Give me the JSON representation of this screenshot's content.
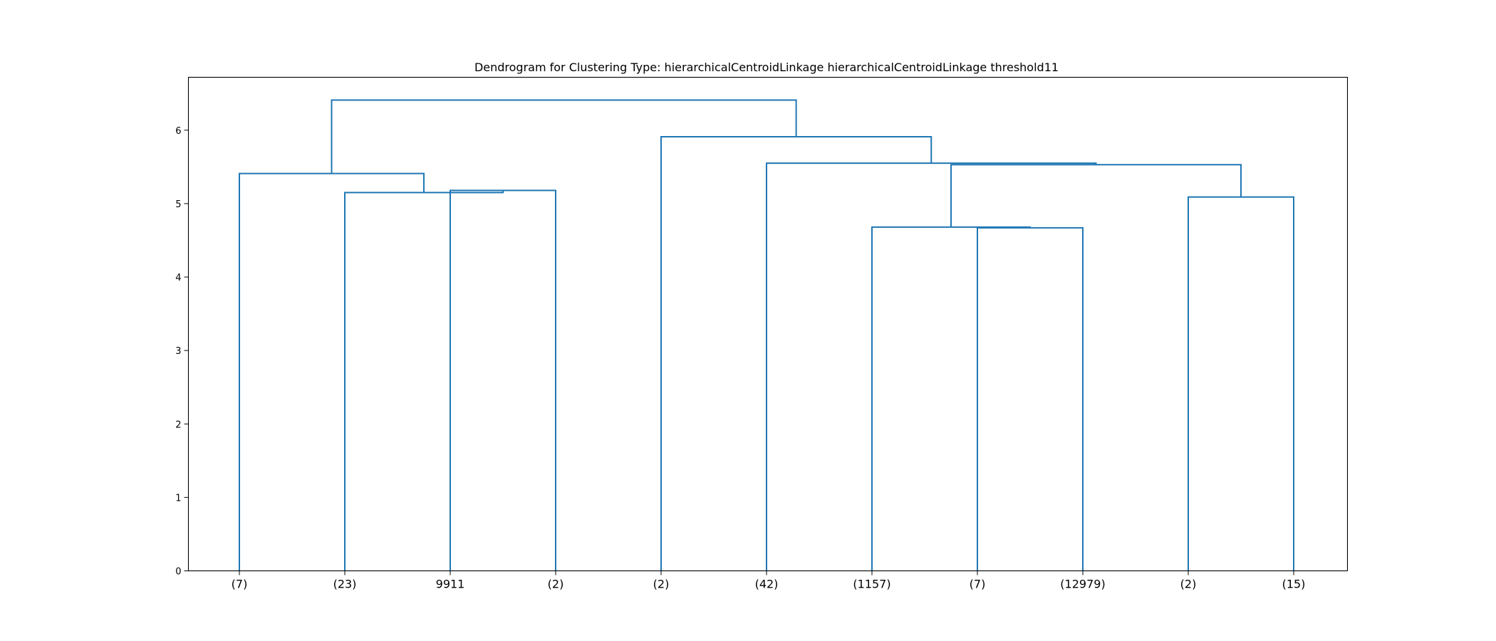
{
  "chart_data": {
    "type": "dendrogram",
    "title": "Dendrogram for Clustering Type: hierarchicalCentroidLinkage hierarchicalCentroidLinkage threshold11",
    "xlabel": "",
    "ylabel": "",
    "ylim": [
      0,
      6.72
    ],
    "yticks": [
      0,
      1,
      2,
      3,
      4,
      5,
      6
    ],
    "grid": false,
    "leaf_labels": [
      "(7)",
      "(23)",
      "9911",
      "(2)",
      "(2)",
      "(42)",
      "(1157)",
      "(7)",
      "(12979)",
      "(2)",
      "(15)"
    ],
    "link_color": "#1f77b4",
    "merges": [
      {
        "id": "m1",
        "left": "leaf:2",
        "right": "leaf:3",
        "height": 5.18
      },
      {
        "id": "m2",
        "left": "leaf:1",
        "right": "m1",
        "height": 5.15
      },
      {
        "id": "m3",
        "left": "leaf:0",
        "right": "m2",
        "height": 5.41
      },
      {
        "id": "m4",
        "left": "leaf:7",
        "right": "leaf:8",
        "height": 4.67
      },
      {
        "id": "m5",
        "left": "leaf:6",
        "right": "m4",
        "height": 4.68
      },
      {
        "id": "m6",
        "left": "leaf:9",
        "right": "leaf:10",
        "height": 5.09
      },
      {
        "id": "m7",
        "left": "m5",
        "right": "m6",
        "height": 5.53
      },
      {
        "id": "m8",
        "left": "leaf:5",
        "right": "m7",
        "height": 5.55
      },
      {
        "id": "m9",
        "left": "leaf:4",
        "right": "m8",
        "height": 5.91
      },
      {
        "id": "m10",
        "left": "m3",
        "right": "m9",
        "height": 6.41
      }
    ]
  }
}
